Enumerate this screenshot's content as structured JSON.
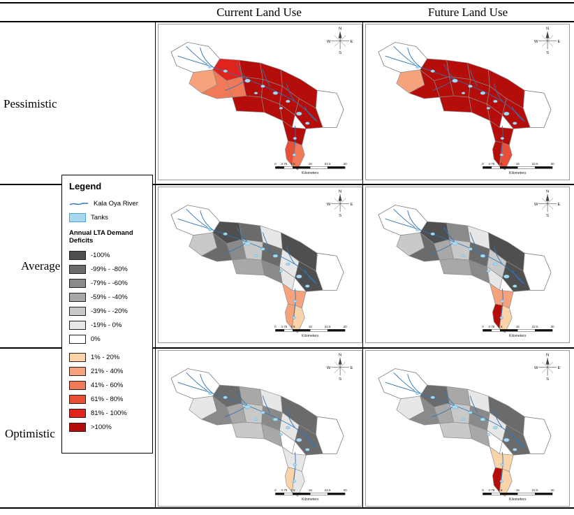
{
  "headers": {
    "current": "Current Land Use",
    "future": "Future Land Use"
  },
  "rows": {
    "pessimistic": "Pessimistic",
    "average": "Average",
    "optimistic": "Optimistic"
  },
  "legend": {
    "title": "Legend",
    "river_label": "Kala Oya River",
    "tanks_label": "Tanks",
    "deficits_title": "Annual LTA Demand Deficits",
    "river_color": "#2e74b5",
    "tank_color": "#a8d9f0",
    "tank_border": "#4ba3d3",
    "classes": [
      {
        "label": "-100%",
        "color": "#4f4f4f"
      },
      {
        "label": "-99% - -80%",
        "color": "#6b6b6b"
      },
      {
        "label": "-79% - -60%",
        "color": "#8a8a8a"
      },
      {
        "label": "-59% - -40%",
        "color": "#a8a8a8"
      },
      {
        "label": "-39% - -20%",
        "color": "#c9c9c9"
      },
      {
        "label": "-19% - 0%",
        "color": "#e7e7e7"
      },
      {
        "label": "0%",
        "color": "#ffffff"
      },
      {
        "label": "1% - 20%",
        "color": "#fbd3a9"
      },
      {
        "label": "21% - 40%",
        "color": "#f6a37d"
      },
      {
        "label": "41% - 60%",
        "color": "#f07a58"
      },
      {
        "label": "61% - 80%",
        "color": "#e75037"
      },
      {
        "label": "81% - 100%",
        "color": "#e0231d"
      },
      {
        "label": ">100%",
        "color": "#b50d0a"
      }
    ]
  },
  "compass": {
    "n": "N",
    "s": "S",
    "e": "E",
    "w": "W"
  },
  "scalebar": {
    "ticks": [
      "0",
      "3.75",
      "7.5",
      "15",
      "22.5",
      "30"
    ],
    "units": "Kilometers"
  },
  "maps": {
    "pessimistic_current": {
      "regions": [
        8,
        9,
        11,
        12,
        12,
        12,
        9,
        12,
        12,
        12,
        12,
        12,
        12,
        12,
        12,
        10,
        9
      ]
    },
    "pessimistic_future": {
      "regions": [
        8,
        12,
        12,
        12,
        12,
        12,
        12,
        12,
        12,
        12,
        12,
        12,
        12,
        12,
        12,
        12,
        10
      ]
    },
    "average_current": {
      "regions": [
        4,
        1,
        0,
        1,
        5,
        0,
        2,
        4,
        1,
        5,
        0,
        3,
        2,
        5,
        8,
        8,
        7
      ]
    },
    "average_future": {
      "regions": [
        4,
        1,
        0,
        2,
        5,
        0,
        3,
        4,
        1,
        4,
        0,
        3,
        2,
        5,
        8,
        12,
        7
      ]
    },
    "optimistic_current": {
      "regions": [
        5,
        2,
        1,
        3,
        5,
        1,
        3,
        4,
        2,
        5,
        1,
        4,
        3,
        6,
        5,
        7,
        5
      ]
    },
    "optimistic_future": {
      "regions": [
        5,
        2,
        1,
        3,
        5,
        1,
        3,
        4,
        2,
        5,
        1,
        4,
        3,
        6,
        7,
        12,
        7
      ]
    }
  }
}
